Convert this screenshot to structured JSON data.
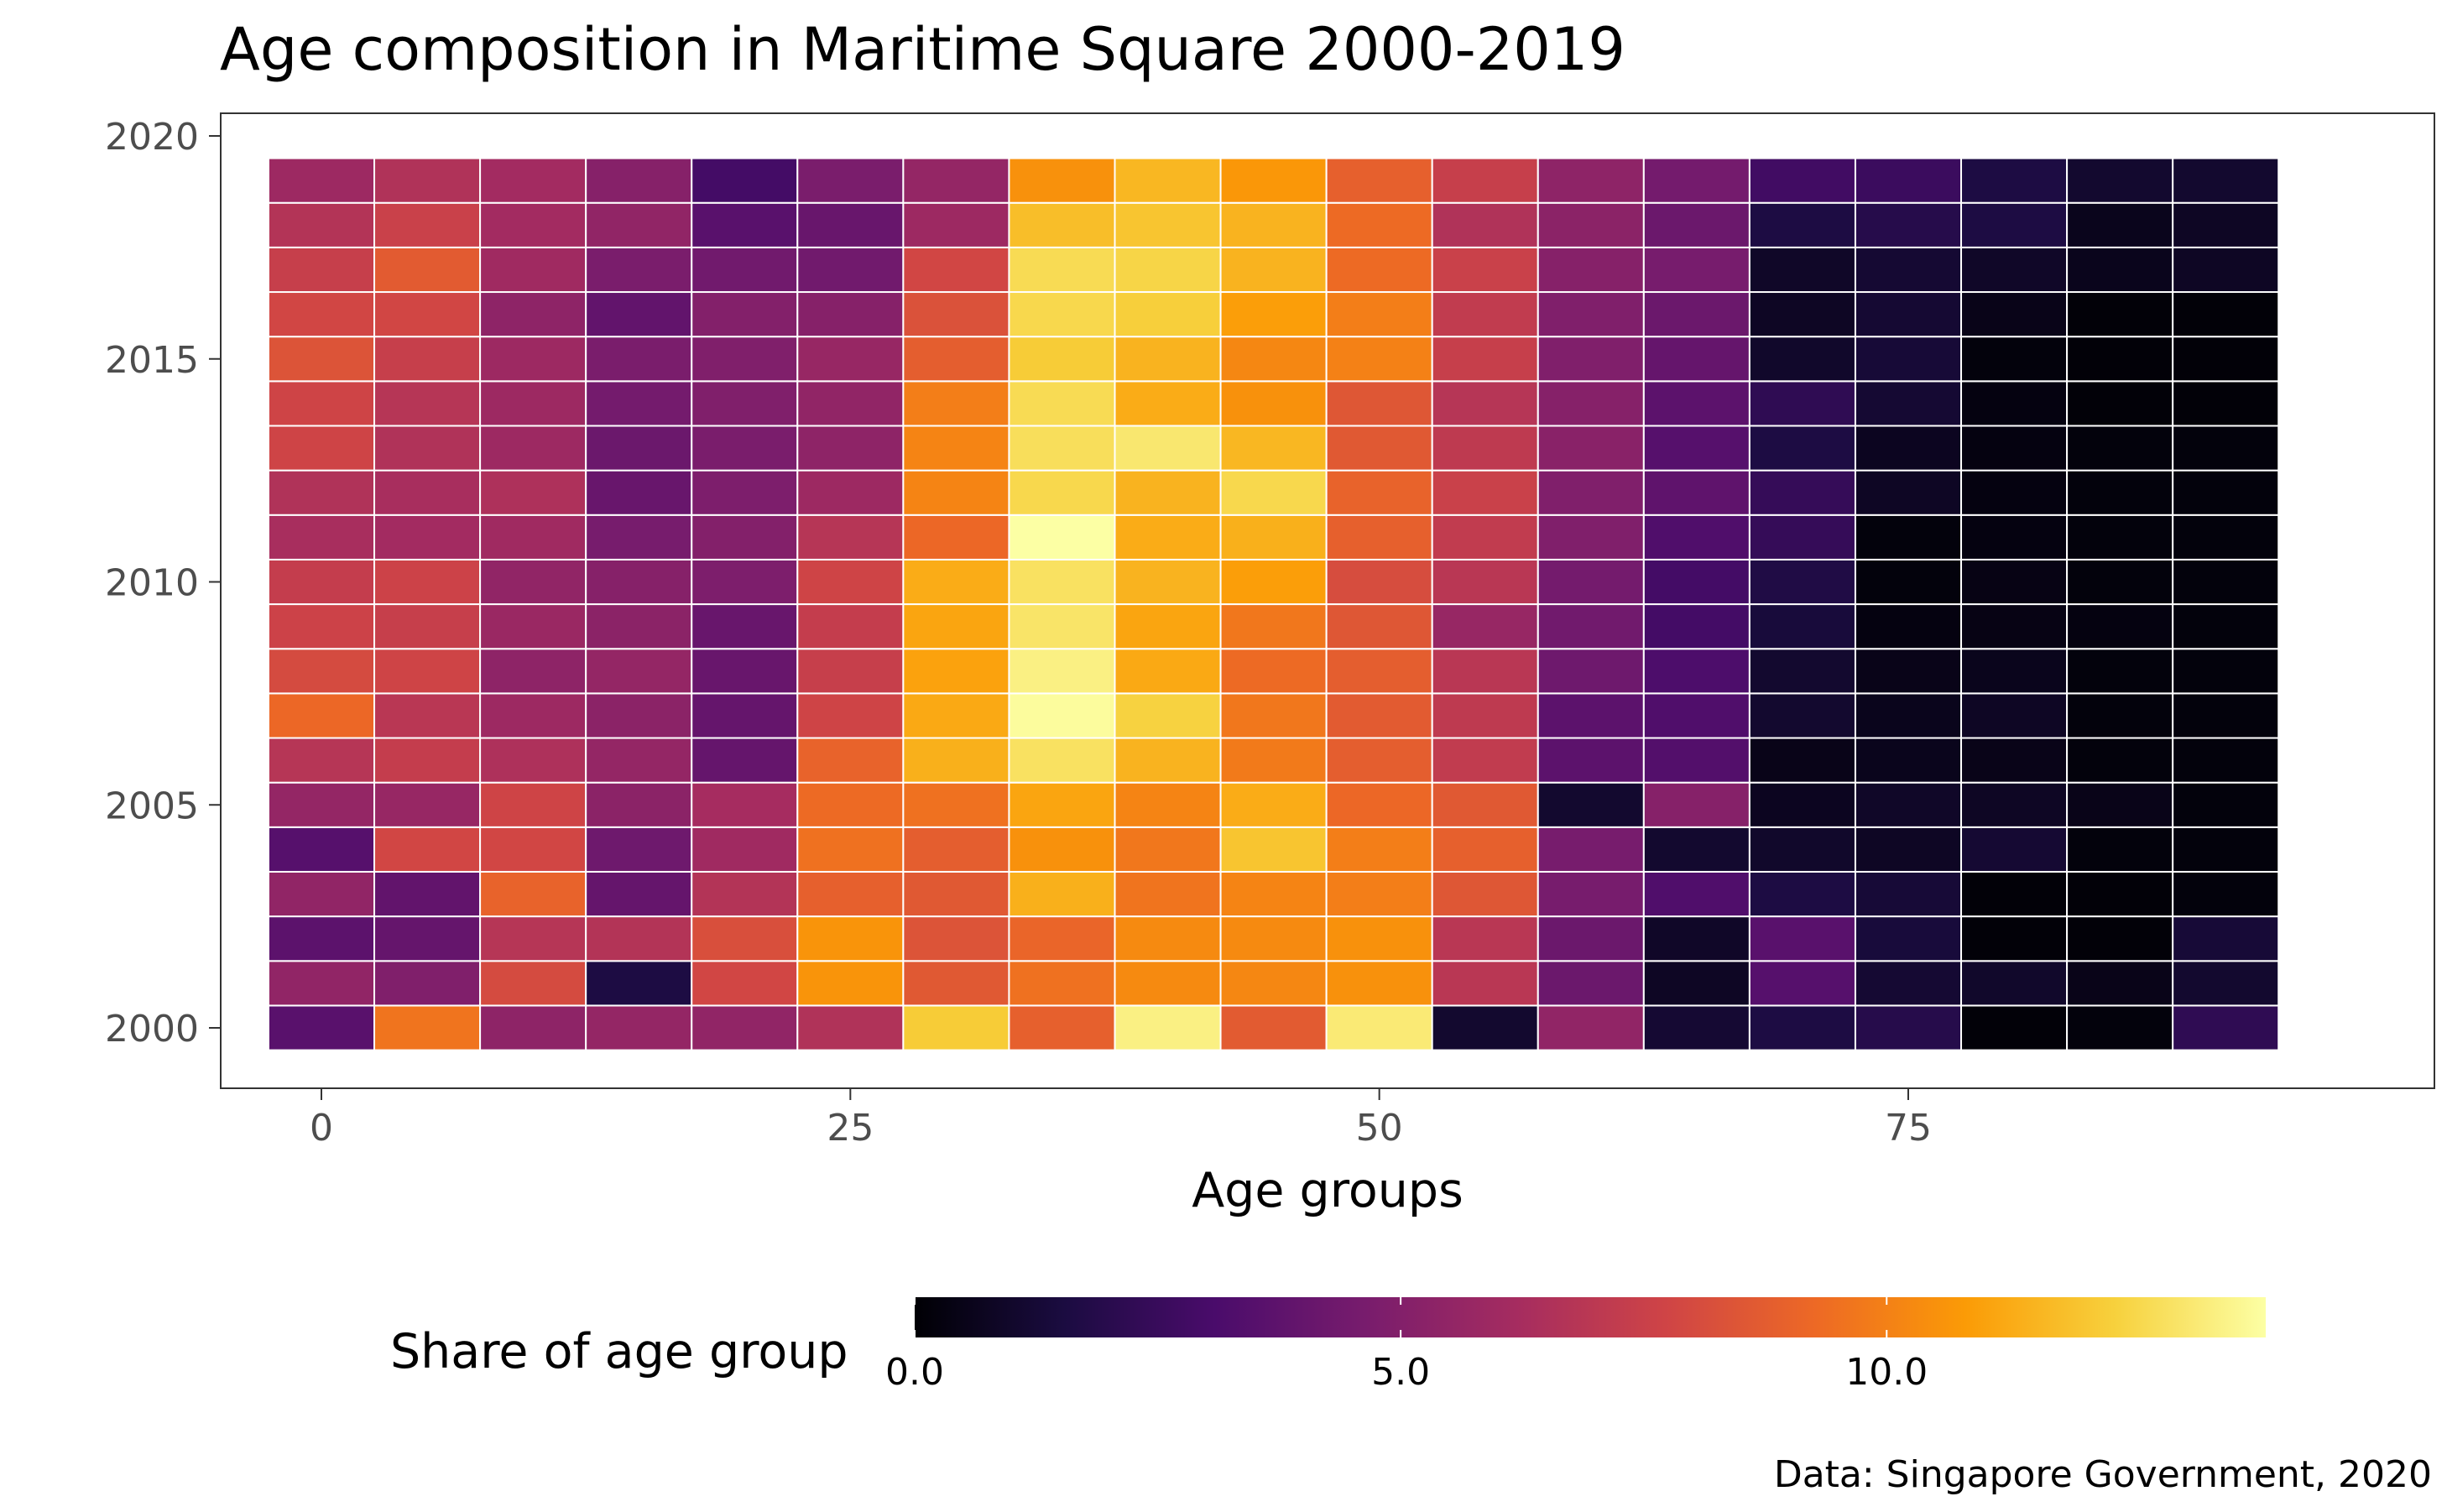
{
  "chart_data": {
    "type": "heatmap",
    "title": "Age composition in Maritime Square 2000-2019",
    "xlabel": "Age groups",
    "ylabel": "",
    "caption": "Data: Singapore Government, 2020",
    "x": [
      0,
      5,
      10,
      15,
      20,
      25,
      30,
      35,
      40,
      45,
      50,
      55,
      60,
      65,
      70,
      75,
      80,
      85,
      90
    ],
    "y": [
      2000,
      2001,
      2002,
      2003,
      2004,
      2005,
      2006,
      2007,
      2008,
      2009,
      2010,
      2011,
      2012,
      2013,
      2014,
      2015,
      2016,
      2017,
      2018,
      2019
    ],
    "values": [
      [
        3.6,
        9.6,
        5.4,
        5.6,
        5.5,
        6.6,
        12.2,
        8.9,
        13.4,
        8.7,
        13.2,
        1.1,
        5.5,
        1.2,
        1.6,
        1.9,
        0.1,
        0.2,
        2.2
      ],
      [
        5.5,
        4.9,
        8.0,
        1.6,
        7.8,
        10.6,
        8.6,
        9.5,
        10.3,
        10.2,
        10.5,
        6.9,
        4.2,
        0.8,
        3.5,
        1.2,
        1.0,
        0.5,
        1.1
      ],
      [
        3.7,
        4.0,
        6.8,
        6.7,
        8.2,
        10.6,
        8.4,
        9.1,
        10.3,
        10.3,
        10.5,
        6.9,
        4.2,
        0.9,
        3.6,
        1.4,
        0.1,
        0.1,
        1.3
      ],
      [
        5.5,
        3.9,
        9.0,
        4.0,
        6.7,
        8.9,
        8.6,
        11.4,
        9.6,
        10.1,
        9.9,
        8.5,
        4.6,
        3.3,
        1.6,
        1.3,
        0.1,
        0.1,
        0.2
      ],
      [
        3.5,
        7.8,
        7.8,
        4.3,
        6.0,
        9.5,
        8.8,
        10.5,
        9.7,
        12.0,
        9.9,
        8.9,
        4.6,
        1.1,
        1.0,
        0.8,
        1.2,
        0.2,
        0.2
      ],
      [
        5.6,
        5.7,
        7.7,
        5.3,
        6.2,
        9.3,
        9.5,
        11.1,
        10.1,
        11.3,
        9.2,
        8.6,
        1.1,
        5.1,
        0.7,
        0.9,
        0.8,
        0.5,
        0.2
      ],
      [
        6.8,
        7.3,
        6.5,
        5.6,
        4.0,
        9.0,
        11.4,
        12.9,
        11.5,
        9.8,
        8.8,
        7.2,
        3.7,
        3.4,
        0.5,
        0.6,
        0.5,
        0.2,
        0.2
      ],
      [
        9.2,
        6.9,
        5.9,
        5.3,
        4.0,
        7.7,
        11.2,
        13.8,
        12.4,
        9.7,
        8.7,
        7.1,
        3.7,
        3.3,
        1.1,
        0.6,
        0.8,
        0.2,
        0.2
      ],
      [
        8.0,
        7.7,
        5.4,
        5.6,
        4.1,
        7.4,
        11.0,
        13.4,
        11.2,
        9.3,
        8.8,
        6.9,
        4.3,
        3.2,
        1.1,
        0.5,
        0.6,
        0.2,
        0.2
      ],
      [
        7.6,
        7.4,
        5.8,
        5.3,
        4.1,
        7.3,
        11.1,
        13.0,
        11.1,
        9.7,
        8.5,
        5.7,
        4.4,
        2.9,
        1.4,
        0.3,
        0.4,
        0.3,
        0.2
      ],
      [
        7.3,
        7.6,
        5.5,
        5.1,
        4.8,
        7.7,
        11.3,
        12.9,
        11.5,
        10.9,
        8.1,
        6.9,
        4.5,
        2.9,
        1.7,
        0.2,
        0.4,
        0.2,
        0.2
      ],
      [
        6.3,
        6.1,
        6.0,
        4.6,
        5.0,
        6.8,
        9.2,
        13.9,
        11.3,
        11.4,
        8.9,
        7.2,
        4.9,
        3.3,
        2.4,
        0.2,
        0.3,
        0.2,
        0.2
      ],
      [
        6.6,
        6.3,
        6.5,
        4.1,
        4.8,
        5.9,
        10.1,
        12.6,
        11.5,
        12.6,
        9.0,
        7.5,
        4.9,
        3.8,
        2.4,
        0.8,
        0.3,
        0.2,
        0.2
      ],
      [
        7.7,
        6.6,
        5.9,
        4.2,
        4.7,
        5.4,
        10.1,
        12.8,
        13.1,
        11.6,
        8.6,
        7.1,
        5.2,
        3.5,
        1.6,
        0.7,
        0.3,
        0.2,
        0.2
      ],
      [
        7.7,
        6.8,
        5.9,
        4.5,
        4.9,
        5.5,
        9.9,
        12.7,
        11.3,
        10.5,
        8.5,
        6.8,
        5.1,
        3.7,
        2.2,
        1.2,
        0.3,
        0.1,
        0.1
      ],
      [
        8.4,
        7.4,
        5.9,
        4.7,
        4.9,
        5.7,
        8.8,
        12.2,
        11.5,
        10.2,
        10.0,
        7.4,
        4.9,
        4.0,
        1.0,
        1.3,
        0.2,
        0.1,
        0.1
      ],
      [
        7.8,
        7.8,
        5.4,
        3.9,
        5.0,
        5.1,
        8.3,
        12.6,
        12.3,
        10.9,
        9.9,
        7.2,
        4.9,
        4.2,
        0.8,
        1.2,
        0.5,
        0.1,
        0.1
      ],
      [
        7.4,
        8.7,
        6.0,
        4.7,
        4.4,
        4.4,
        7.8,
        12.7,
        12.5,
        11.5,
        9.3,
        7.5,
        5.1,
        4.6,
        0.9,
        1.2,
        0.9,
        0.6,
        0.8
      ],
      [
        6.7,
        7.5,
        6.1,
        5.5,
        3.6,
        4.1,
        5.9,
        11.8,
        12.0,
        11.5,
        9.3,
        6.6,
        5.3,
        4.2,
        1.6,
        1.9,
        1.6,
        0.6,
        0.8
      ],
      [
        5.9,
        6.6,
        6.1,
        5.1,
        2.9,
        4.7,
        5.6,
        10.5,
        11.6,
        10.7,
        8.9,
        7.4,
        5.4,
        4.5,
        2.8,
        2.6,
        1.6,
        1.1,
        1.1
      ]
    ],
    "xlim": [
      0,
      95
    ],
    "ylim": [
      2000,
      2019
    ],
    "x_ticks": [
      "0",
      "25",
      "50",
      "75"
    ],
    "y_ticks": [
      "2000",
      "2005",
      "2010",
      "2015",
      "2020"
    ],
    "colorscale": "inferno",
    "color_range": [
      0,
      13.9
    ],
    "legend": {
      "title": "Share of age group",
      "labels": [
        "0.0",
        "5.0",
        "10.0"
      ],
      "position": "bottom"
    },
    "grid": false
  }
}
